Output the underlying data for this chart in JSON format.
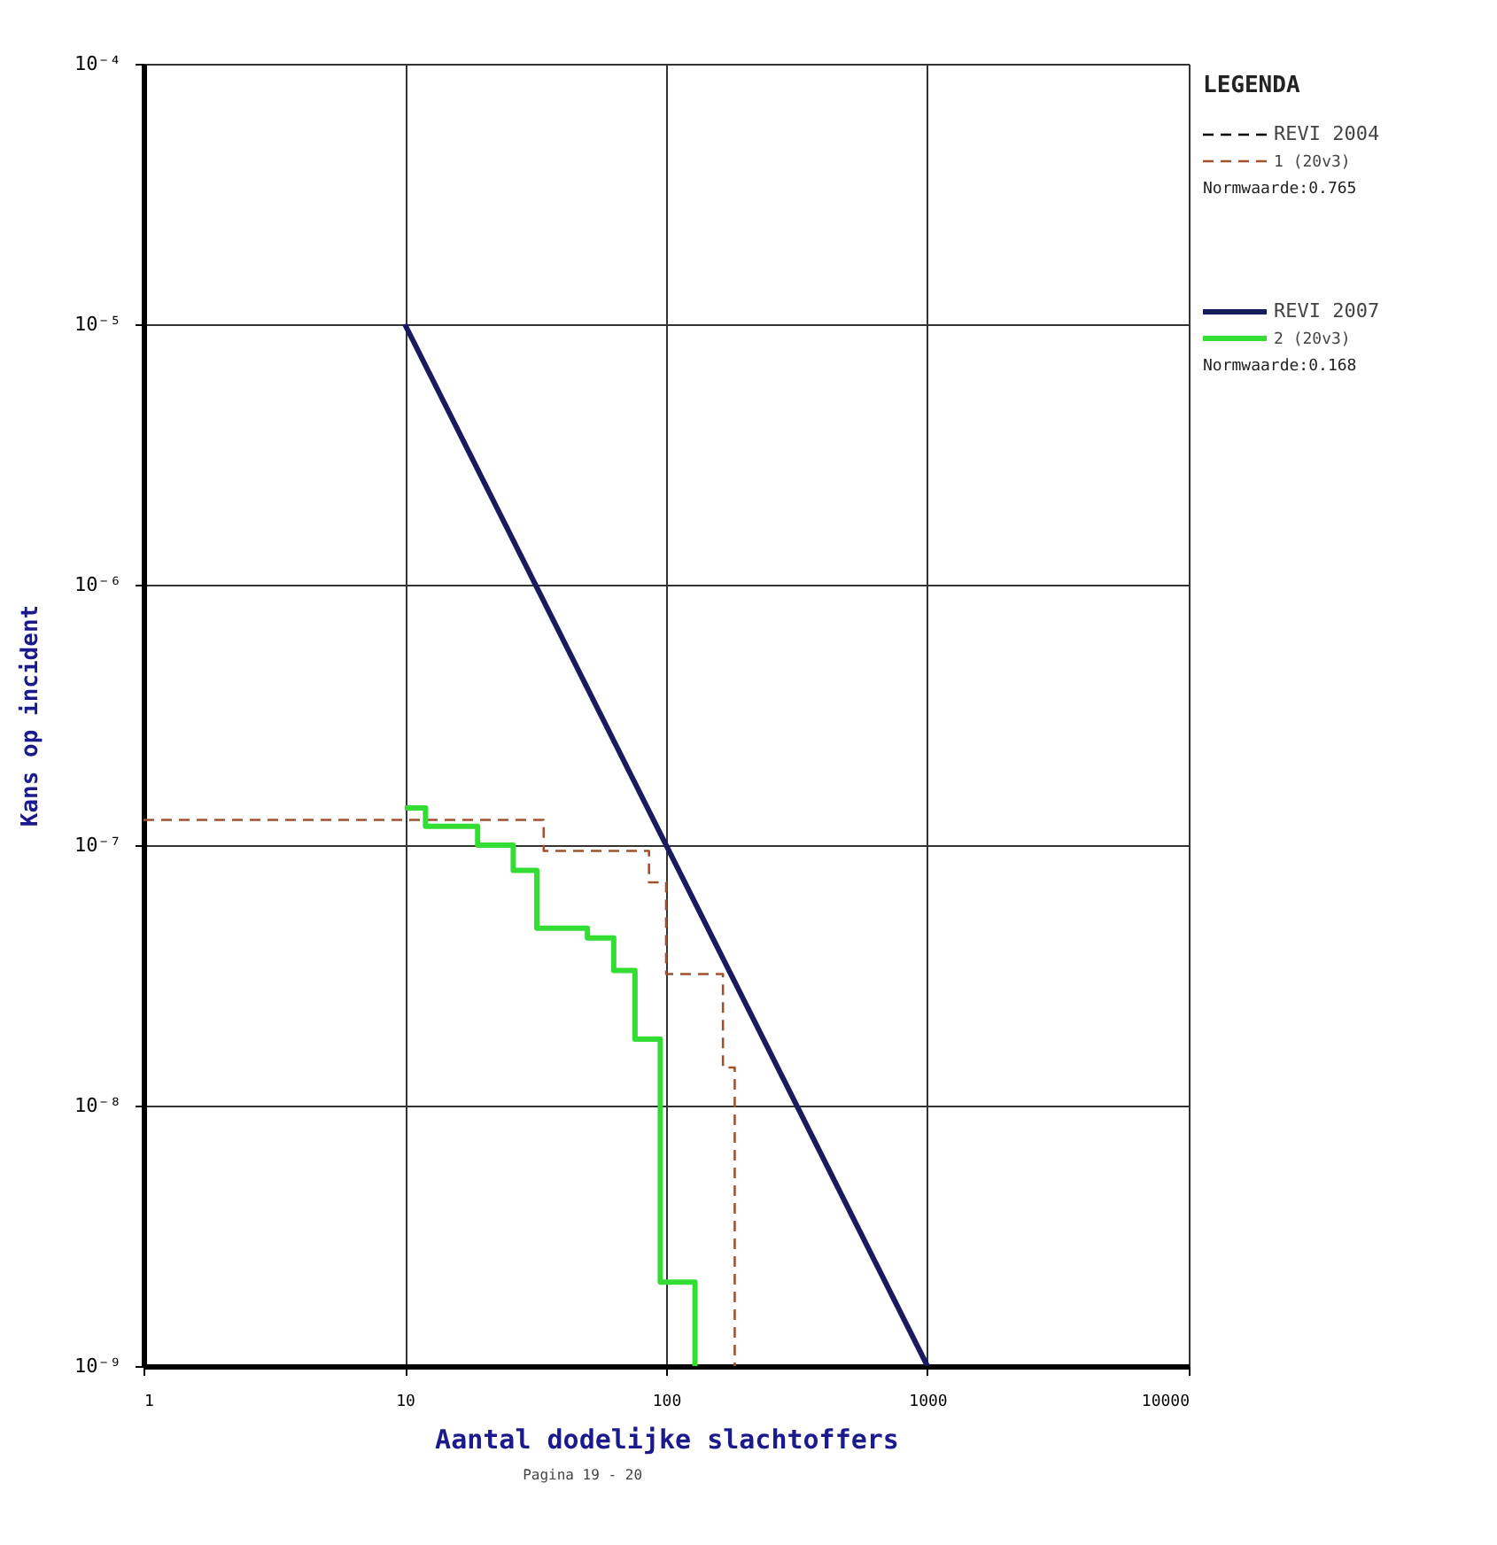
{
  "chart_data": {
    "type": "step",
    "xlabel": "Aantal dodelijke slachtoffers",
    "ylabel": "Kans op incident",
    "legend_title": "LEGENDA",
    "log": "xy",
    "grid": true,
    "legend": "top right",
    "xlim": [
      1,
      10000
    ],
    "xticks": [
      1,
      10,
      100,
      1000,
      10000
    ],
    "ylim": [
      1e-09,
      0.0001
    ],
    "yticks": [
      {
        "value": 1e-09,
        "label": "10⁻⁹"
      },
      {
        "value": 1e-08,
        "label": "10⁻⁸"
      },
      {
        "value": 1e-07,
        "label": "10⁻⁷"
      },
      {
        "value": 1e-06,
        "label": "10⁻⁶"
      },
      {
        "value": 1e-05,
        "label": "10⁻⁵"
      },
      {
        "value": 0.0001,
        "label": "10⁻⁴"
      }
    ],
    "series": [
      {
        "name": "REVI 2004",
        "type": "line",
        "color": "#000000",
        "line_style": "dashed"
      },
      {
        "name": "1 (20v3)",
        "color": "#a0522d",
        "line_style": "dashed",
        "x": [
          1,
          34,
          86,
          100,
          165,
          183
        ],
        "values": [
          1.25e-07,
          9.5e-08,
          7.2e-08,
          3.2e-08,
          1.4e-08,
          1e-09
        ]
      },
      {
        "name": "REVI 2007",
        "type": "line",
        "color": "#1a1a5e",
        "line_style": "solid",
        "x": [
          10,
          1000
        ],
        "values": [
          1e-05,
          1e-09
        ]
      },
      {
        "name": "2 (20v3)",
        "color": "#33dd33",
        "line_style": "solid",
        "x": [
          10,
          12,
          19,
          26,
          32,
          50,
          63,
          76,
          95,
          129
        ],
        "values": [
          1.39e-07,
          1.18e-07,
          1e-07,
          8e-08,
          4.8e-08,
          4.4e-08,
          3.3e-08,
          1.8e-08,
          2.1e-09,
          1e-09
        ]
      }
    ],
    "annotations": [
      "Normwaarde:0.765",
      "Normwaarde:0.168",
      "Pagina 19 - 20"
    ]
  }
}
